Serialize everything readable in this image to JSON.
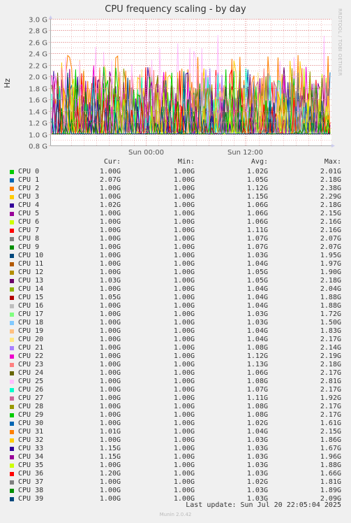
{
  "page": {
    "title": "CPU frequency scaling - by day",
    "side_text": "RRDTOOL / TOBI OETIKER",
    "last_update": "Last update:  Sun Jul 20 22:05:04 2025",
    "generator": "Munin 2.0.42"
  },
  "legend": {
    "headers": {
      "cur": "Cur:",
      "min": "Min:",
      "avg": "Avg:",
      "max": "Max:"
    },
    "rows": [
      {
        "name": "CPU 0",
        "cur": "1.00G",
        "min": "1.00G",
        "avg": "1.02G",
        "max": "2.01G",
        "color": "#00cc00"
      },
      {
        "name": "CPU 1",
        "cur": "2.07G",
        "min": "1.00G",
        "avg": "1.05G",
        "max": "2.18G",
        "color": "#0066b3"
      },
      {
        "name": "CPU 2",
        "cur": "1.00G",
        "min": "1.00G",
        "avg": "1.12G",
        "max": "2.38G",
        "color": "#ff8000"
      },
      {
        "name": "CPU 3",
        "cur": "1.00G",
        "min": "1.00G",
        "avg": "1.15G",
        "max": "2.29G",
        "color": "#ffcc00"
      },
      {
        "name": "CPU 4",
        "cur": "1.02G",
        "min": "1.00G",
        "avg": "1.06G",
        "max": "2.18G",
        "color": "#330099"
      },
      {
        "name": "CPU 5",
        "cur": "1.00G",
        "min": "1.00G",
        "avg": "1.06G",
        "max": "2.15G",
        "color": "#990099"
      },
      {
        "name": "CPU 6",
        "cur": "1.00G",
        "min": "1.00G",
        "avg": "1.06G",
        "max": "2.16G",
        "color": "#ccff00"
      },
      {
        "name": "CPU 7",
        "cur": "1.00G",
        "min": "1.00G",
        "avg": "1.11G",
        "max": "2.16G",
        "color": "#ff0000"
      },
      {
        "name": "CPU 8",
        "cur": "1.00G",
        "min": "1.00G",
        "avg": "1.07G",
        "max": "2.07G",
        "color": "#808080"
      },
      {
        "name": "CPU 9",
        "cur": "1.00G",
        "min": "1.00G",
        "avg": "1.07G",
        "max": "2.07G",
        "color": "#008f00"
      },
      {
        "name": "CPU 10",
        "cur": "1.00G",
        "min": "1.00G",
        "avg": "1.03G",
        "max": "1.95G",
        "color": "#00487d"
      },
      {
        "name": "CPU 11",
        "cur": "1.00G",
        "min": "1.00G",
        "avg": "1.04G",
        "max": "1.97G",
        "color": "#b35a00"
      },
      {
        "name": "CPU 12",
        "cur": "1.00G",
        "min": "1.00G",
        "avg": "1.05G",
        "max": "1.90G",
        "color": "#b38f00"
      },
      {
        "name": "CPU 13",
        "cur": "1.03G",
        "min": "1.00G",
        "avg": "1.05G",
        "max": "2.18G",
        "color": "#6b006b"
      },
      {
        "name": "CPU 14",
        "cur": "1.00G",
        "min": "1.00G",
        "avg": "1.04G",
        "max": "2.04G",
        "color": "#8fb300"
      },
      {
        "name": "CPU 15",
        "cur": "1.05G",
        "min": "1.00G",
        "avg": "1.04G",
        "max": "1.88G",
        "color": "#b30000"
      },
      {
        "name": "CPU 16",
        "cur": "1.00G",
        "min": "1.00G",
        "avg": "1.04G",
        "max": "1.88G",
        "color": "#bebebe"
      },
      {
        "name": "CPU 17",
        "cur": "1.00G",
        "min": "1.00G",
        "avg": "1.03G",
        "max": "1.72G",
        "color": "#80ff80"
      },
      {
        "name": "CPU 18",
        "cur": "1.00G",
        "min": "1.00G",
        "avg": "1.03G",
        "max": "1.50G",
        "color": "#80c9ff"
      },
      {
        "name": "CPU 19",
        "cur": "1.00G",
        "min": "1.00G",
        "avg": "1.04G",
        "max": "1.83G",
        "color": "#ffc080"
      },
      {
        "name": "CPU 20",
        "cur": "1.00G",
        "min": "1.00G",
        "avg": "1.04G",
        "max": "2.17G",
        "color": "#ffe680"
      },
      {
        "name": "CPU 21",
        "cur": "1.00G",
        "min": "1.00G",
        "avg": "1.08G",
        "max": "2.14G",
        "color": "#aa80ff"
      },
      {
        "name": "CPU 22",
        "cur": "1.00G",
        "min": "1.00G",
        "avg": "1.12G",
        "max": "2.19G",
        "color": "#ee00cc"
      },
      {
        "name": "CPU 23",
        "cur": "1.00G",
        "min": "1.00G",
        "avg": "1.13G",
        "max": "2.18G",
        "color": "#ff8080"
      },
      {
        "name": "CPU 24",
        "cur": "1.00G",
        "min": "1.00G",
        "avg": "1.06G",
        "max": "2.17G",
        "color": "#666600"
      },
      {
        "name": "CPU 25",
        "cur": "1.00G",
        "min": "1.00G",
        "avg": "1.08G",
        "max": "2.81G",
        "color": "#ffbfff"
      },
      {
        "name": "CPU 26",
        "cur": "1.00G",
        "min": "1.00G",
        "avg": "1.07G",
        "max": "2.17G",
        "color": "#00ffcc"
      },
      {
        "name": "CPU 27",
        "cur": "1.00G",
        "min": "1.00G",
        "avg": "1.11G",
        "max": "1.92G",
        "color": "#cc6699"
      },
      {
        "name": "CPU 28",
        "cur": "1.00G",
        "min": "1.00G",
        "avg": "1.08G",
        "max": "2.17G",
        "color": "#999900"
      },
      {
        "name": "CPU 29",
        "cur": "1.00G",
        "min": "1.00G",
        "avg": "1.08G",
        "max": "2.17G",
        "color": "#00cc00"
      },
      {
        "name": "CPU 30",
        "cur": "1.00G",
        "min": "1.00G",
        "avg": "1.02G",
        "max": "1.61G",
        "color": "#0066b3"
      },
      {
        "name": "CPU 31",
        "cur": "1.01G",
        "min": "1.00G",
        "avg": "1.04G",
        "max": "2.15G",
        "color": "#ff8000"
      },
      {
        "name": "CPU 32",
        "cur": "1.00G",
        "min": "1.00G",
        "avg": "1.03G",
        "max": "1.86G",
        "color": "#ffcc00"
      },
      {
        "name": "CPU 33",
        "cur": "1.15G",
        "min": "1.00G",
        "avg": "1.03G",
        "max": "1.67G",
        "color": "#330099"
      },
      {
        "name": "CPU 34",
        "cur": "1.15G",
        "min": "1.00G",
        "avg": "1.03G",
        "max": "1.96G",
        "color": "#990099"
      },
      {
        "name": "CPU 35",
        "cur": "1.00G",
        "min": "1.00G",
        "avg": "1.03G",
        "max": "1.88G",
        "color": "#ccff00"
      },
      {
        "name": "CPU 36",
        "cur": "1.20G",
        "min": "1.00G",
        "avg": "1.03G",
        "max": "1.66G",
        "color": "#ff0000"
      },
      {
        "name": "CPU 37",
        "cur": "1.00G",
        "min": "1.00G",
        "avg": "1.02G",
        "max": "1.81G",
        "color": "#808080"
      },
      {
        "name": "CPU 38",
        "cur": "1.00G",
        "min": "1.00G",
        "avg": "1.03G",
        "max": "1.89G",
        "color": "#008f00"
      },
      {
        "name": "CPU 39",
        "cur": "1.00G",
        "min": "1.00G",
        "avg": "1.03G",
        "max": "2.09G",
        "color": "#00487d"
      }
    ]
  },
  "chart_data": {
    "type": "line",
    "title": "CPU frequency scaling - by day",
    "ylabel": "Hz",
    "xlabel": "",
    "ylim": [
      0.8,
      3.0
    ],
    "y_unit": "G",
    "y_ticks": [
      "0.8 G",
      "1.0 G",
      "1.2 G",
      "1.4 G",
      "1.6 G",
      "1.8 G",
      "2.0 G",
      "2.2 G",
      "2.4 G",
      "2.6 G",
      "2.8 G",
      "3.0 G"
    ],
    "x_ticks": [
      "Sun 00:00",
      "Sun 12:00"
    ],
    "grid": true,
    "legend_placement": "bottom",
    "series_note_hidden": "",
    "summary_from_legend": true
  }
}
